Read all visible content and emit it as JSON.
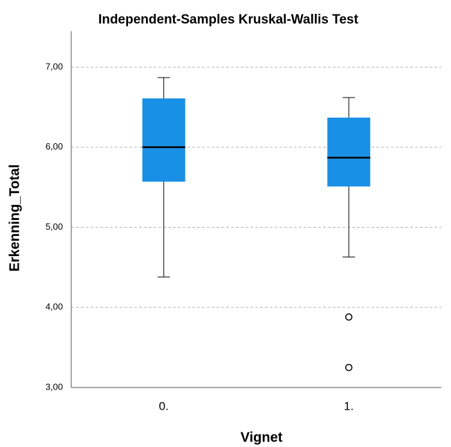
{
  "chart_data": {
    "type": "box",
    "title": "Independent-Samples Kruskal-Wallis Test",
    "x_label": "Vignet",
    "y_label": "Erkenning_Total",
    "categories": [
      "0.",
      "1."
    ],
    "boxes": [
      {
        "whisker_low": 4.38,
        "q1": 5.57,
        "median": 6.0,
        "q3": 6.61,
        "whisker_high": 6.87
      },
      {
        "whisker_low": 4.63,
        "q1": 5.51,
        "median": 5.87,
        "q3": 6.37,
        "whisker_high": 6.62,
        "outliers": [
          3.88,
          3.25
        ]
      }
    ],
    "color": "#1a8fe6",
    "ylim": [
      3,
      7.45
    ],
    "yticks": [
      {
        "value": 3,
        "label": "3,00"
      },
      {
        "value": 4,
        "label": "4,00"
      },
      {
        "value": 5,
        "label": "5,00"
      },
      {
        "value": 6,
        "label": "6,00"
      },
      {
        "value": 7,
        "label": "7,00"
      }
    ],
    "grid": true
  }
}
